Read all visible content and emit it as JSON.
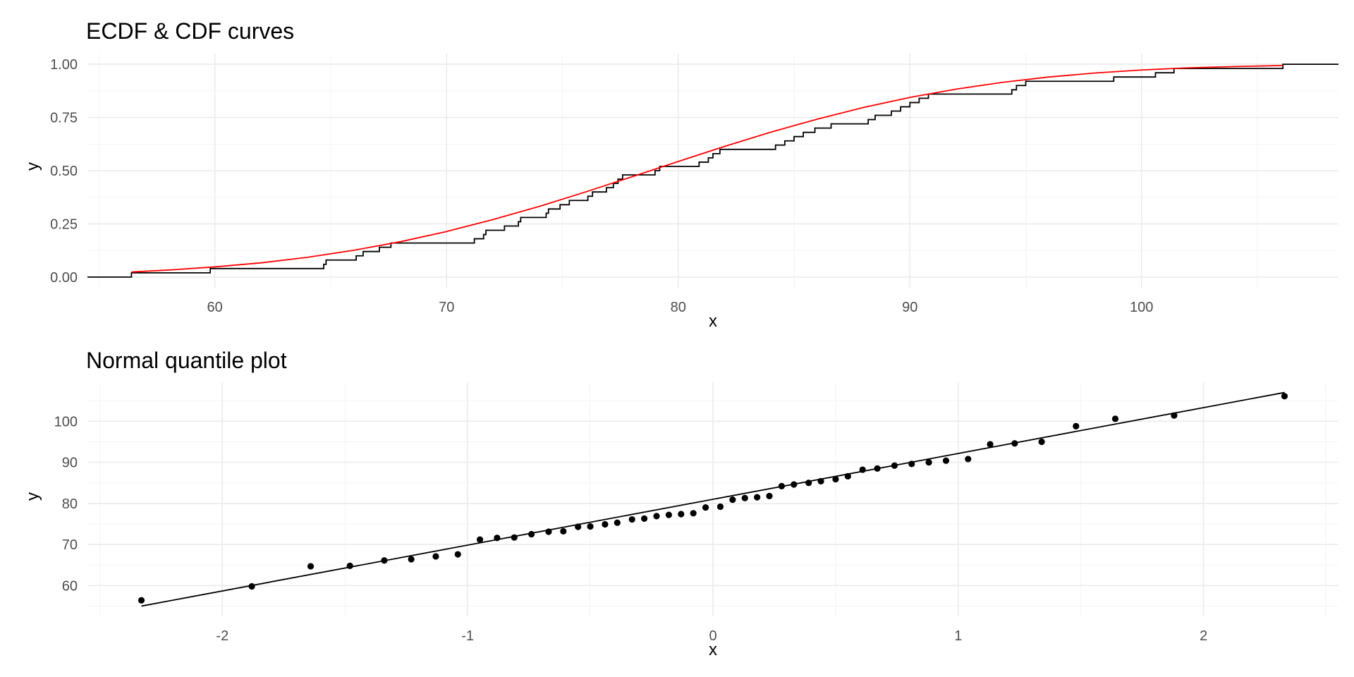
{
  "chart_data": [
    {
      "type": "line",
      "title": "ECDF & CDF curves",
      "xlabel": "x",
      "ylabel": "y",
      "xlim": [
        54.5,
        108.5
      ],
      "ylim": [
        -0.05,
        1.05
      ],
      "x_ticks": [
        60,
        70,
        80,
        90,
        100
      ],
      "x_tick_labels": [
        "60",
        "70",
        "80",
        "90",
        "100"
      ],
      "y_ticks": [
        0,
        0.25,
        0.5,
        0.75,
        1
      ],
      "y_tick_labels": [
        "0.00",
        "0.25",
        "0.50",
        "0.75",
        "1.00"
      ],
      "grid": true,
      "series": [
        {
          "kind": "step",
          "color": "#000000",
          "x": [
            56.4,
            59.8,
            64.7,
            64.8,
            66.1,
            66.4,
            67.1,
            67.6,
            71.2,
            71.6,
            71.7,
            72.5,
            73.1,
            73.2,
            74.3,
            74.4,
            74.9,
            75.3,
            76.1,
            76.3,
            76.9,
            77.2,
            77.4,
            77.6,
            79.0,
            79.2,
            80.9,
            81.3,
            81.5,
            81.8,
            84.2,
            84.6,
            85.0,
            85.4,
            85.9,
            86.6,
            88.2,
            88.5,
            89.2,
            89.6,
            90.0,
            90.4,
            90.8,
            94.4,
            94.6,
            95.0,
            98.8,
            100.6,
            101.4,
            106.1
          ],
          "y": [
            0.02,
            0.04,
            0.06,
            0.08,
            0.1,
            0.12,
            0.14,
            0.16,
            0.18,
            0.2,
            0.22,
            0.24,
            0.26,
            0.28,
            0.3,
            0.32,
            0.34,
            0.36,
            0.38,
            0.4,
            0.42,
            0.44,
            0.46,
            0.48,
            0.5,
            0.52,
            0.54,
            0.56,
            0.58,
            0.6,
            0.62,
            0.64,
            0.66,
            0.68,
            0.7,
            0.72,
            0.74,
            0.76,
            0.78,
            0.8,
            0.82,
            0.84,
            0.86,
            0.88,
            0.9,
            0.92,
            0.94,
            0.96,
            0.98,
            1.0
          ]
        },
        {
          "kind": "curve",
          "color": "#ff0000",
          "x": [
            56.4,
            58,
            60,
            62,
            64,
            66,
            68,
            70,
            72,
            74,
            76,
            78,
            80,
            82,
            84,
            86,
            88,
            90,
            92,
            94,
            96,
            98,
            100,
            102,
            104,
            106.1
          ],
          "y": [
            0.024,
            0.033,
            0.048,
            0.067,
            0.093,
            0.126,
            0.166,
            0.214,
            0.27,
            0.332,
            0.4,
            0.471,
            0.543,
            0.614,
            0.681,
            0.742,
            0.797,
            0.844,
            0.883,
            0.915,
            0.94,
            0.959,
            0.973,
            0.983,
            0.989,
            0.994
          ]
        }
      ]
    },
    {
      "type": "scatter",
      "title": "Normal quantile plot",
      "xlabel": "x",
      "ylabel": "y",
      "xlim": [
        -2.55,
        2.55
      ],
      "ylim": [
        52.5,
        109.5
      ],
      "x_ticks": [
        -2,
        -1,
        0,
        1,
        2
      ],
      "x_tick_labels": [
        "-2",
        "-1",
        "0",
        "1",
        "2"
      ],
      "y_ticks": [
        60,
        70,
        80,
        90,
        100
      ],
      "y_tick_labels": [
        "60",
        "70",
        "80",
        "90",
        "100"
      ],
      "grid": true,
      "points": {
        "color": "#000000",
        "x": [
          -2.33,
          -1.88,
          -1.64,
          -1.48,
          -1.34,
          -1.23,
          -1.13,
          -1.04,
          -0.95,
          -0.88,
          -0.81,
          -0.74,
          -0.67,
          -0.61,
          -0.55,
          -0.5,
          -0.44,
          -0.39,
          -0.33,
          -0.28,
          -0.23,
          -0.18,
          -0.13,
          -0.08,
          -0.03,
          0.03,
          0.08,
          0.13,
          0.18,
          0.23,
          0.28,
          0.33,
          0.39,
          0.44,
          0.5,
          0.55,
          0.61,
          0.67,
          0.74,
          0.81,
          0.88,
          0.95,
          1.04,
          1.13,
          1.23,
          1.34,
          1.48,
          1.64,
          1.88,
          2.33
        ],
        "y": [
          56.4,
          59.8,
          64.7,
          64.8,
          66.1,
          66.4,
          67.1,
          67.6,
          71.2,
          71.6,
          71.7,
          72.5,
          73.1,
          73.2,
          74.3,
          74.4,
          74.9,
          75.3,
          76.1,
          76.3,
          76.9,
          77.2,
          77.4,
          77.6,
          79.0,
          79.2,
          80.9,
          81.3,
          81.5,
          81.8,
          84.2,
          84.6,
          85.0,
          85.4,
          85.9,
          86.6,
          88.2,
          88.5,
          89.2,
          89.6,
          90.0,
          90.4,
          90.8,
          94.4,
          94.6,
          95.0,
          98.8,
          100.6,
          101.4,
          106.1
        ]
      },
      "line": {
        "color": "#000000",
        "x": [
          -2.33,
          2.33
        ],
        "y": [
          55.0,
          107.0
        ]
      }
    }
  ]
}
